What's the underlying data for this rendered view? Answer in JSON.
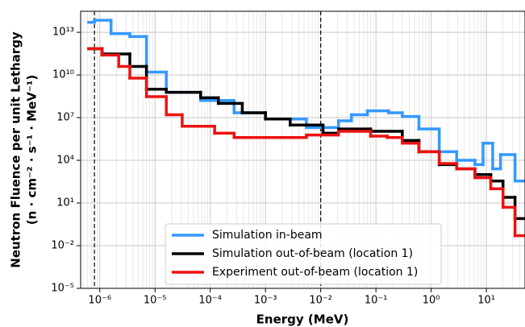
{
  "chart_data": {
    "type": "step",
    "xlabel": "Energy (MeV)",
    "ylabel": [
      "Neutron Fluence per unit Lethargy",
      "(n · cm⁻² · s⁻¹ · MeV⁻¹)"
    ],
    "xscale": "log",
    "yscale": "log",
    "grid": true,
    "legend": "lower center",
    "xlim": [
      4.5e-07,
      50
    ],
    "ylim": [
      1e-05,
      300000000000000.0
    ],
    "xticks": [
      {
        "value": 1e-06,
        "label": "10⁻⁶"
      },
      {
        "value": 1e-05,
        "label": "10⁻⁵"
      },
      {
        "value": 0.0001,
        "label": "10⁻⁴"
      },
      {
        "value": 0.001,
        "label": "10⁻³"
      },
      {
        "value": 0.01,
        "label": "10⁻²"
      },
      {
        "value": 0.1,
        "label": "10⁻¹"
      },
      {
        "value": 1,
        "label": "10⁰"
      },
      {
        "value": 10,
        "label": "10¹"
      }
    ],
    "yticks": [
      {
        "value": 1e-05,
        "label": "10⁻⁵"
      },
      {
        "value": 0.01,
        "label": "10⁻²"
      },
      {
        "value": 10,
        "label": "10¹"
      },
      {
        "value": 10000.0,
        "label": "10⁴"
      },
      {
        "value": 10000000.0,
        "label": "10⁷"
      },
      {
        "value": 10000000000.0,
        "label": "10¹⁰"
      },
      {
        "value": 10000000000000.0,
        "label": "10¹³"
      }
    ],
    "vlines": [
      8e-07,
      0.01
    ],
    "series": [
      {
        "name": "Simulation in-beam",
        "color": "#3399ff",
        "bins": [
          6.3e-07,
          8e-07,
          1.6e-06,
          3.5e-06,
          7e-06,
          1.6e-05,
          6.7e-05,
          0.00027,
          0.001,
          0.0055,
          0.021,
          0.036,
          0.07,
          0.17,
          0.3,
          0.6,
          1.4,
          2.9,
          6.2,
          8.7,
          13,
          18,
          33,
          50
        ],
        "values": [
          50000000000000.0,
          70000000000000.0,
          8000000000000.0,
          5000000000000.0,
          16000000000.0,
          600000000.0,
          160000000.0,
          22000000.0,
          8000000.0,
          2000000.0,
          6000000.0,
          16000000.0,
          30000000.0,
          22000000.0,
          12000000.0,
          1600000.0,
          40000.0,
          10000.0,
          5000.0,
          160000.0,
          2500.0,
          25000.0,
          350
        ]
      },
      {
        "name": "Simulation out-of-beam (location 1)",
        "color": "#000000",
        "bins": [
          6.3e-07,
          1.1e-06,
          3.5e-06,
          7e-06,
          1.6e-05,
          6.7e-05,
          0.00014,
          0.00038,
          0.001,
          0.0028,
          0.011,
          0.021,
          0.08,
          0.3,
          0.6,
          1.4,
          2.9,
          6.2,
          12,
          20,
          33,
          50
        ],
        "values": [
          700000000000.0,
          300000000000.0,
          40000000000.0,
          1000000000.0,
          600000000.0,
          250000000.0,
          100000000.0,
          22000000.0,
          8000000.0,
          3000000.0,
          800000.0,
          1600000.0,
          1100000.0,
          250000.0,
          40000.0,
          5000.0,
          2500.0,
          1000.0,
          350,
          25,
          0.8
        ]
      },
      {
        "name": "Experiment out-of-beam (location 1)",
        "color": "#ee1111",
        "bins": [
          6.3e-07,
          1.1e-06,
          2.2e-06,
          3.5e-06,
          7e-06,
          1.6e-05,
          3.1e-05,
          0.00012,
          0.00027,
          0.0014,
          0.0055,
          0.021,
          0.08,
          0.16,
          0.3,
          0.6,
          1.4,
          2.9,
          6.2,
          12,
          20,
          33,
          50
        ],
        "values": [
          700000000000.0,
          250000000000.0,
          40000000000.0,
          6000000000.0,
          300000000.0,
          16000000.0,
          2500000.0,
          800000.0,
          400000.0,
          400000.0,
          600000.0,
          1100000.0,
          500000.0,
          400000.0,
          160000.0,
          40000.0,
          6000.0,
          2500.0,
          600,
          100,
          5,
          0.05
        ]
      }
    ]
  }
}
